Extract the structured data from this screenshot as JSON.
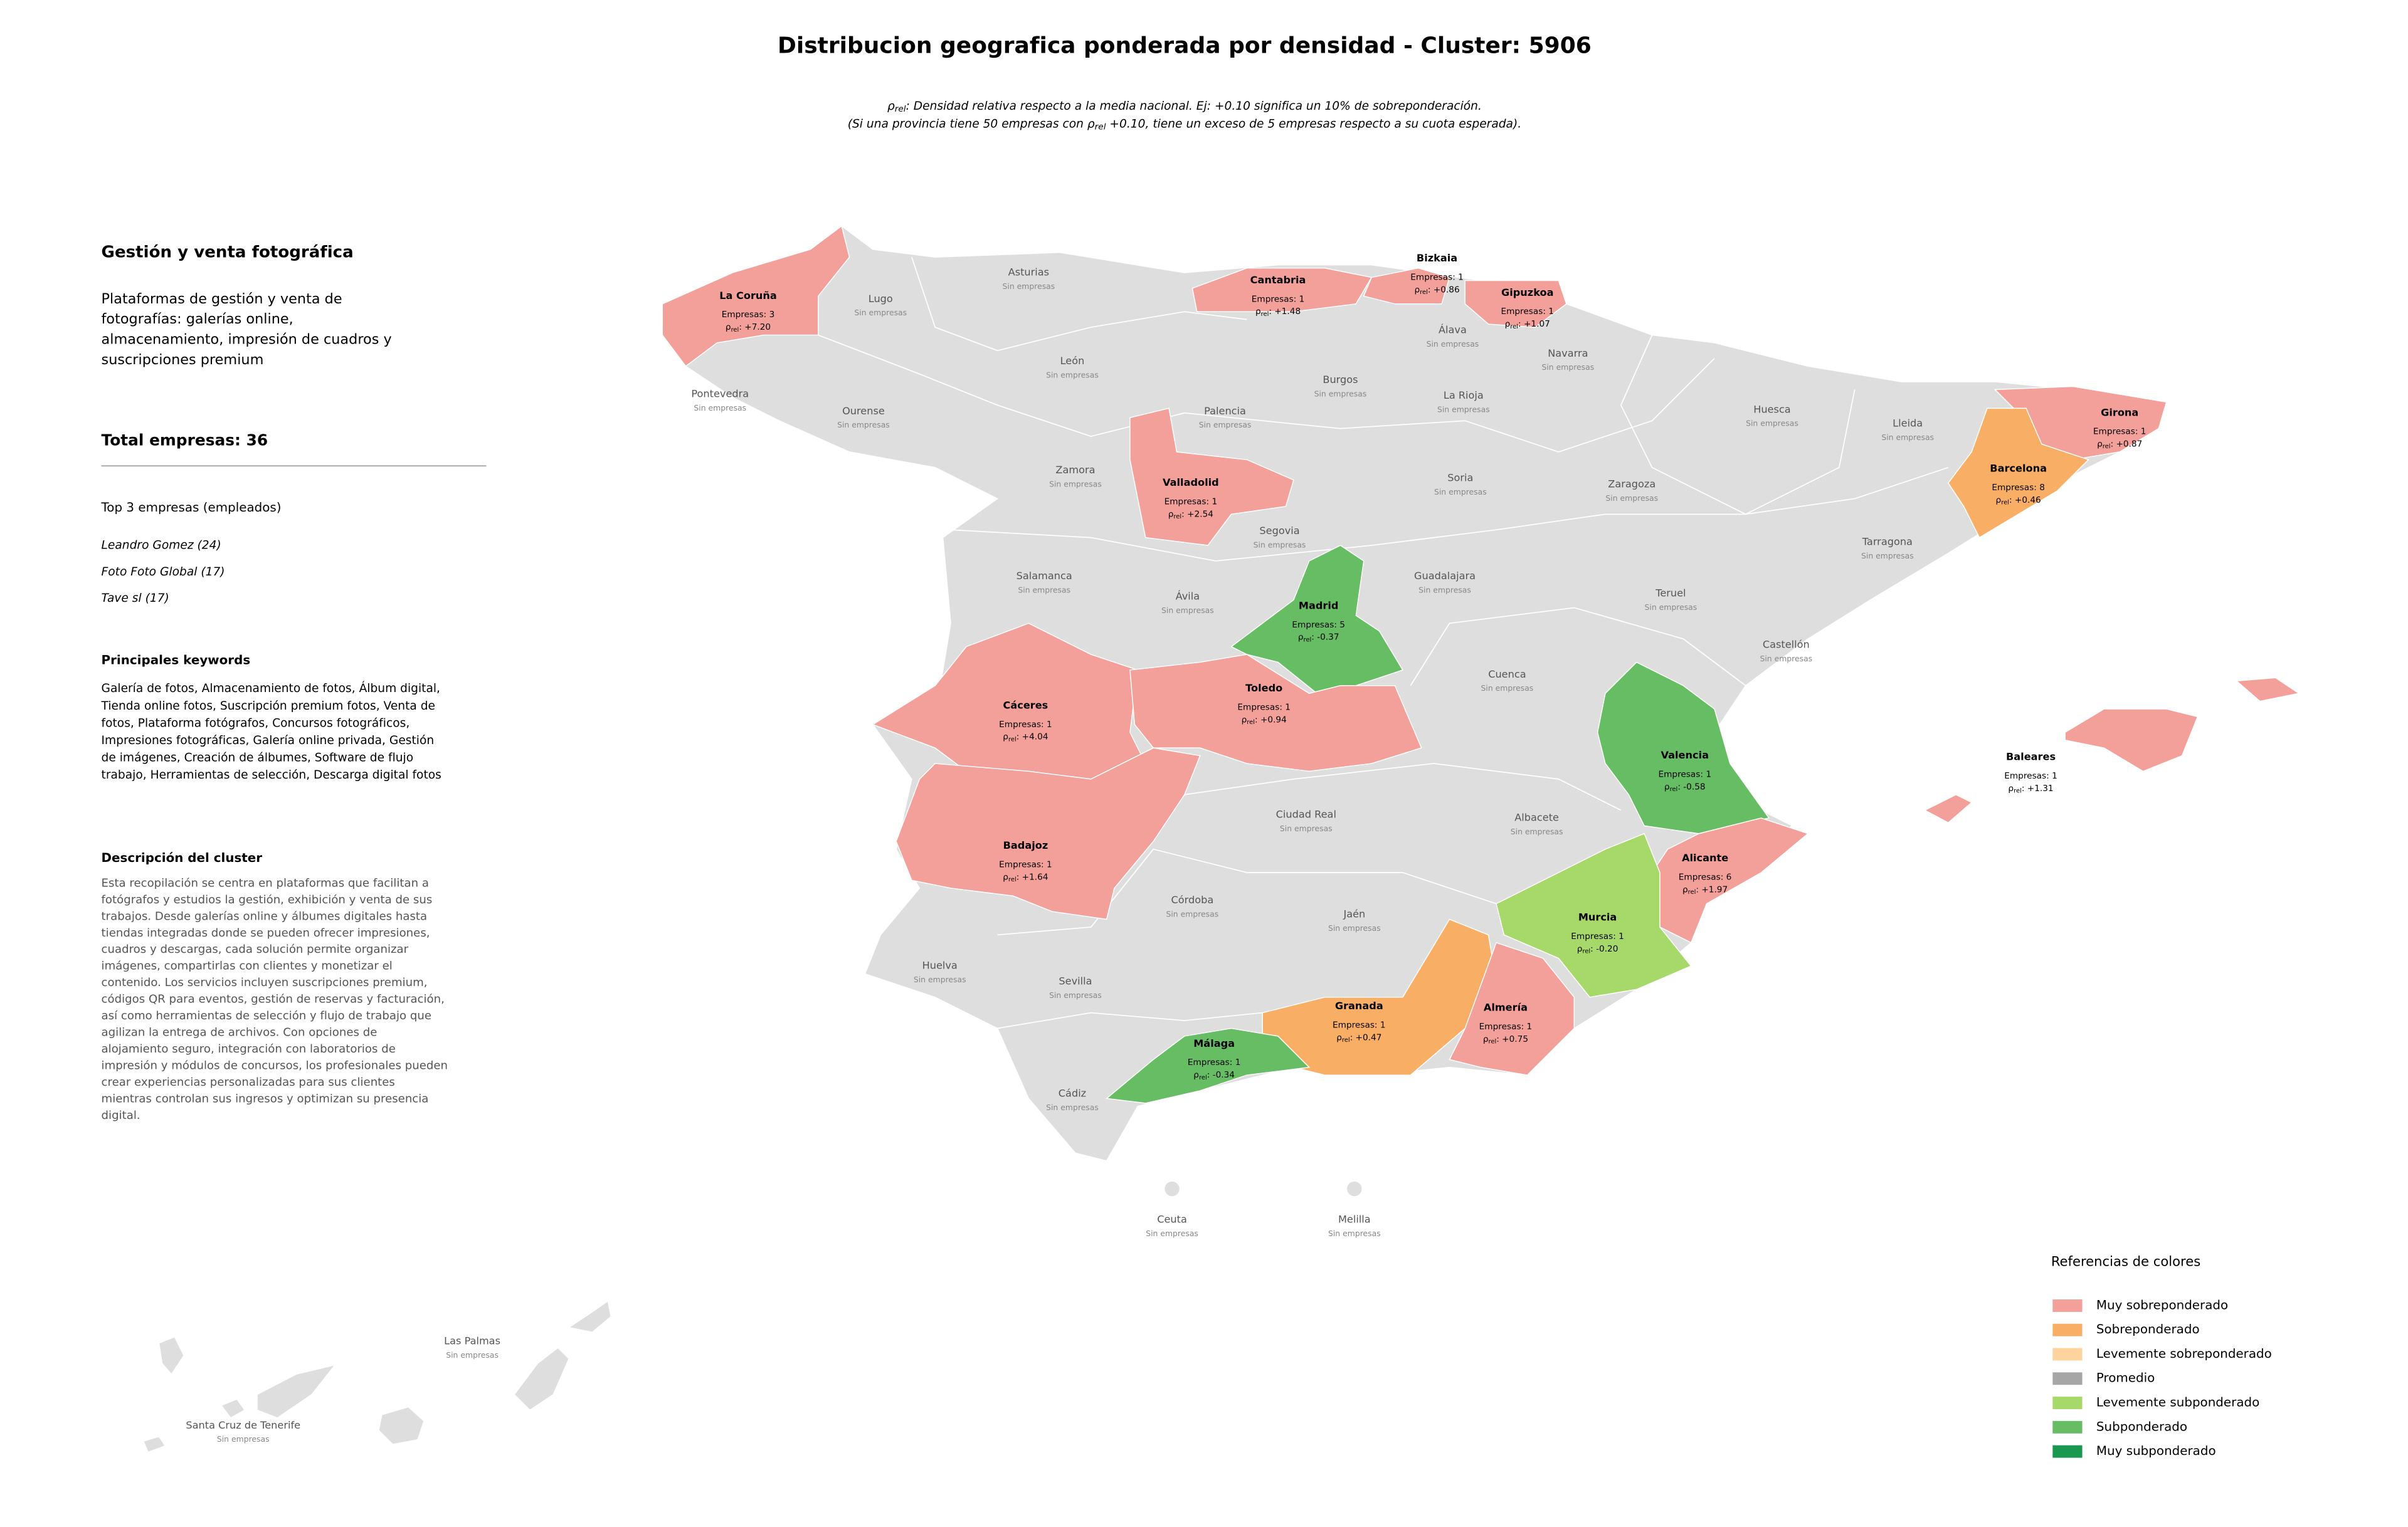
{
  "header": {
    "title": "Distribucion geografica ponderada por densidad - Cluster: 5906",
    "subtitle": [
      [
        {
          "text": "ρ"
        },
        {
          "sub": "rel"
        },
        {
          "text": ": Densidad relativa respecto a la media nacional. Ej: +0.10 significa un 10% de sobreponderación."
        }
      ],
      [
        {
          "text": "(Si una provincia tiene 50 empresas con ρ"
        },
        {
          "sub": "rel"
        },
        {
          "text": " +0.10, tiene un exceso de 5 empresas respecto a su cuota esperada)."
        }
      ]
    ]
  },
  "panel": {
    "title": "Gestión y venta fotográfica",
    "summary": [
      "Plataformas de gestión y venta de",
      "fotografías: galerías online,",
      "almacenamiento, impresión de cuadros y",
      "suscripciones premium"
    ],
    "total": "Total empresas: 36",
    "top_heading": "Top 3 empresas (empleados)",
    "top": [
      "Leandro Gomez (24)",
      "Foto Foto Global (17)",
      "Tave sl (17)"
    ],
    "keywords_heading": "Principales keywords",
    "keywords": [
      "Galería de fotos, Almacenamiento de fotos, Álbum digital,",
      "Tienda online fotos, Suscripción premium fotos, Venta de",
      "fotos, Plataforma fotógrafos, Concursos fotográficos,",
      "Impresiones fotográficas, Galería online privada, Gestión",
      "de imágenes, Creación de álbumes, Software de flujo",
      "trabajo, Herramientas de selección, Descarga digital fotos"
    ],
    "description_heading": "Descripción del cluster",
    "description": [
      "Esta recopilación se centra en plataformas que facilitan a",
      "fotógrafos y estudios la gestión, exhibición y venta de sus",
      "trabajos. Desde galerías online y álbumes digitales hasta",
      "tiendas integradas donde se pueden ofrecer impresiones,",
      "cuadros y descargas, cada solución permite organizar",
      "imágenes, compartirlas con clientes y monetizar el",
      "contenido. Los servicios incluyen suscripciones premium,",
      "códigos QR para eventos, gestión de reservas y facturación,",
      "así como herramientas de selección y flujo de trabajo que",
      "agilizan la entrega de archivos. Con opciones de",
      "alojamiento seguro, integración con laboratorios de",
      "impresión y módulos de concursos, los profesionales pueden",
      "crear experiencias personalizadas para sus clientes",
      "mientras controlan sus ingresos y optimizan su presencia",
      "digital."
    ]
  },
  "rho": {
    "symbol": "ρ",
    "sub": "rel"
  },
  "provinces": [
    {
      "name": "La Coruña",
      "color": "#f4a09a",
      "empresas": "Empresas: 3",
      "rho": ": +7.20"
    },
    {
      "name": "Lugo",
      "status": "Sin empresas"
    },
    {
      "name": "Asturias",
      "status": "Sin empresas"
    },
    {
      "name": "Cantabria",
      "color": "#f4a09a",
      "empresas": "Empresas: 1",
      "rho": ": +1.48"
    },
    {
      "name": "Bizkaia",
      "color": "#f4a09a",
      "empresas": "Empresas: 1",
      "rho": ": +0.86"
    },
    {
      "name": "Gipuzkoa",
      "color": "#f4a09a",
      "empresas": "Empresas: 1",
      "rho": ": +1.07"
    },
    {
      "name": "Álava",
      "status": "Sin empresas"
    },
    {
      "name": "Navarra",
      "status": "Sin empresas"
    },
    {
      "name": "Pontevedra",
      "status": "Sin empresas"
    },
    {
      "name": "Ourense",
      "status": "Sin empresas"
    },
    {
      "name": "León",
      "status": "Sin empresas"
    },
    {
      "name": "Palencia",
      "status": "Sin empresas"
    },
    {
      "name": "Burgos",
      "status": "Sin empresas"
    },
    {
      "name": "La Rioja",
      "status": "Sin empresas"
    },
    {
      "name": "Huesca",
      "status": "Sin empresas"
    },
    {
      "name": "Lleida",
      "status": "Sin empresas"
    },
    {
      "name": "Girona",
      "color": "#f4a09a",
      "empresas": "Empresas: 1",
      "rho": ": +0.87"
    },
    {
      "name": "Barcelona",
      "color": "#f9ae66",
      "empresas": "Empresas: 8",
      "rho": ": +0.46"
    },
    {
      "name": "Zamora",
      "status": "Sin empresas"
    },
    {
      "name": "Valladolid",
      "color": "#f4a09a",
      "empresas": "Empresas: 1",
      "rho": ": +2.54"
    },
    {
      "name": "Soria",
      "status": "Sin empresas"
    },
    {
      "name": "Zaragoza",
      "status": "Sin empresas"
    },
    {
      "name": "Tarragona",
      "status": "Sin empresas"
    },
    {
      "name": "Segovia",
      "status": "Sin empresas"
    },
    {
      "name": "Salamanca",
      "status": "Sin empresas"
    },
    {
      "name": "Ávila",
      "status": "Sin empresas"
    },
    {
      "name": "Guadalajara",
      "status": "Sin empresas"
    },
    {
      "name": "Teruel",
      "status": "Sin empresas"
    },
    {
      "name": "Madrid",
      "color": "#66bd63",
      "empresas": "Empresas: 5",
      "rho": ": -0.37"
    },
    {
      "name": "Castellón",
      "status": "Sin empresas"
    },
    {
      "name": "Cuenca",
      "status": "Sin empresas"
    },
    {
      "name": "Cáceres",
      "color": "#f4a09a",
      "empresas": "Empresas: 1",
      "rho": ": +4.04"
    },
    {
      "name": "Toledo",
      "color": "#f4a09a",
      "empresas": "Empresas: 1",
      "rho": ": +0.94"
    },
    {
      "name": "Valencia",
      "color": "#66bd63",
      "empresas": "Empresas: 1",
      "rho": ": -0.58"
    },
    {
      "name": "Baleares",
      "color": "#f4a09a",
      "empresas": "Empresas: 1",
      "rho": ": +1.31"
    },
    {
      "name": "Badajoz",
      "color": "#f4a09a",
      "empresas": "Empresas: 1",
      "rho": ": +1.64"
    },
    {
      "name": "Ciudad Real",
      "status": "Sin empresas"
    },
    {
      "name": "Albacete",
      "status": "Sin empresas"
    },
    {
      "name": "Alicante",
      "color": "#f4a09a",
      "empresas": "Empresas: 6",
      "rho": ": +1.97"
    },
    {
      "name": "Murcia",
      "color": "#a6d96a",
      "empresas": "Empresas: 1",
      "rho": ": -0.20"
    },
    {
      "name": "Córdoba",
      "status": "Sin empresas"
    },
    {
      "name": "Jaén",
      "status": "Sin empresas"
    },
    {
      "name": "Huelva",
      "status": "Sin empresas"
    },
    {
      "name": "Sevilla",
      "status": "Sin empresas"
    },
    {
      "name": "Granada",
      "color": "#f9ae66",
      "empresas": "Empresas: 1",
      "rho": ": +0.47"
    },
    {
      "name": "Almería",
      "color": "#f4a09a",
      "empresas": "Empresas: 1",
      "rho": ": +0.75"
    },
    {
      "name": "Málaga",
      "color": "#66bd63",
      "empresas": "Empresas: 1",
      "rho": ": -0.34"
    },
    {
      "name": "Cádiz",
      "status": "Sin empresas"
    },
    {
      "name": "Ceuta",
      "status": "Sin empresas"
    },
    {
      "name": "Melilla",
      "status": "Sin empresas"
    },
    {
      "name": "Las Palmas",
      "status": "Sin empresas"
    },
    {
      "name": "Santa Cruz de Tenerife",
      "status": "Sin empresas"
    }
  ],
  "legend": {
    "title": "Referencias de colores",
    "items": [
      {
        "label": "Muy sobreponderado",
        "color": "#f4a09a"
      },
      {
        "label": "Sobreponderado",
        "color": "#f9ae66"
      },
      {
        "label": "Levemente sobreponderado",
        "color": "#fdd49e"
      },
      {
        "label": "Promedio",
        "color": "#a6a6a6"
      },
      {
        "label": "Levemente subponderado",
        "color": "#a6d96a"
      },
      {
        "label": "Subponderado",
        "color": "#66bd63"
      },
      {
        "label": "Muy subponderado",
        "color": "#1a9850"
      }
    ]
  }
}
